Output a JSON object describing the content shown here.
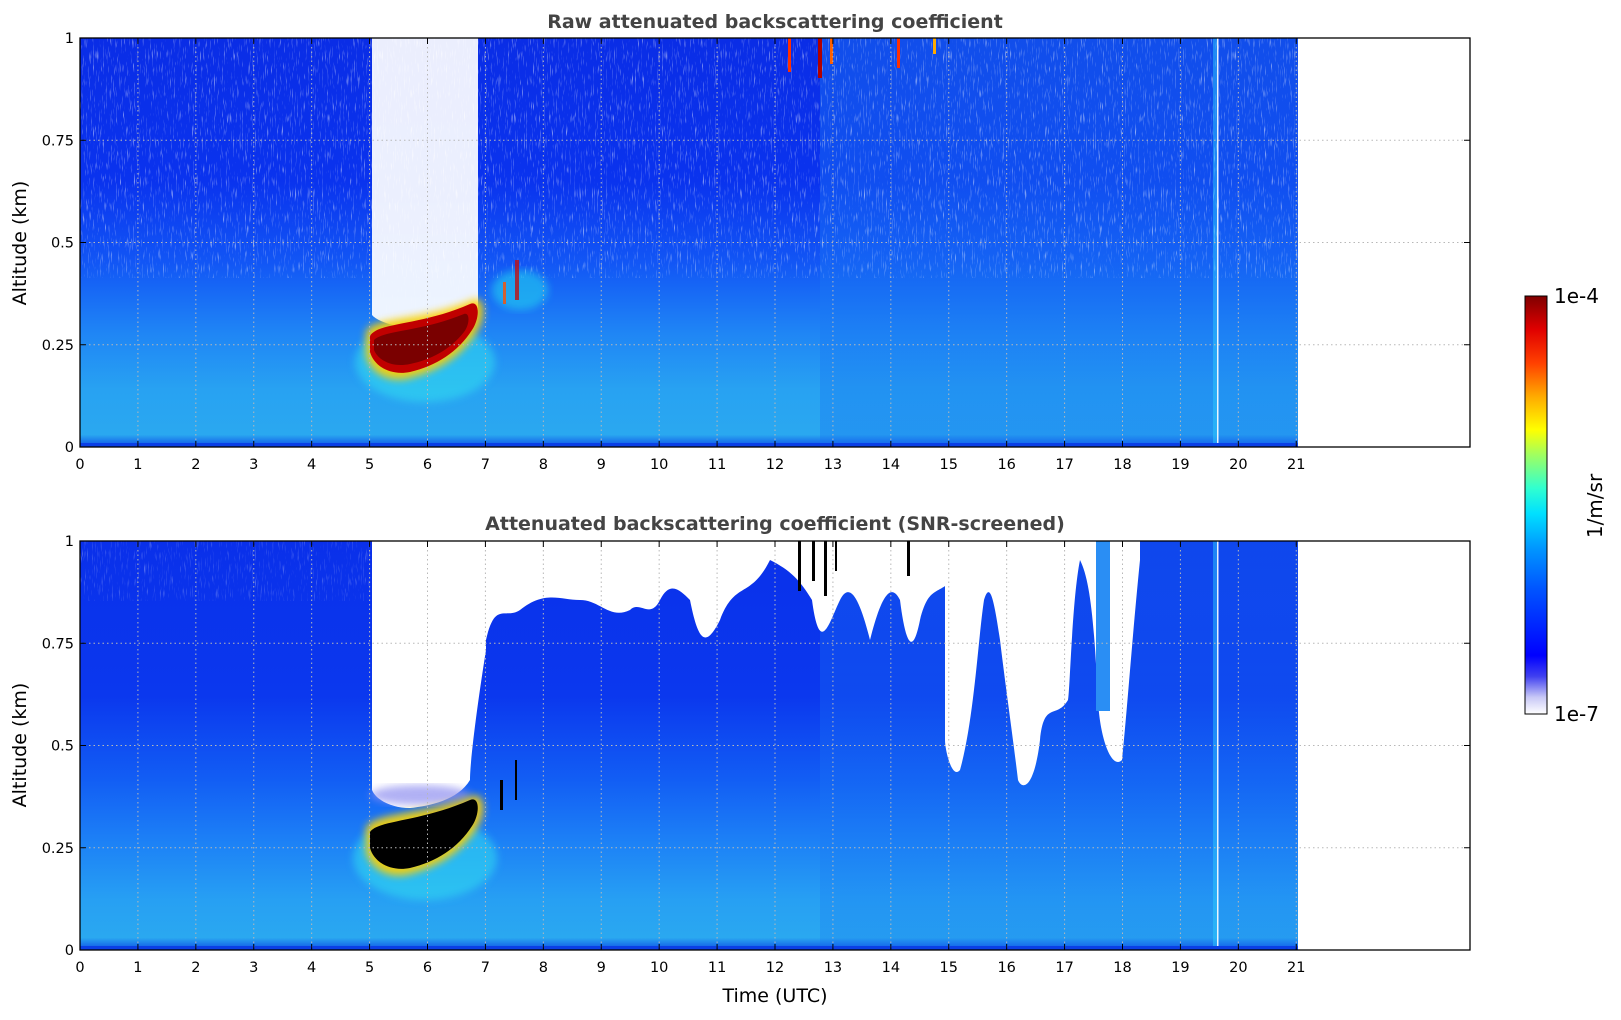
{
  "chart_data": [
    {
      "type": "heatmap",
      "title": "Raw attenuated backscattering coefficient",
      "xlabel": "",
      "ylabel": "Altitude (km)",
      "xlim": [
        0,
        24
      ],
      "ylim": [
        0,
        1
      ],
      "x_ticks": [
        "0",
        "1",
        "2",
        "3",
        "4",
        "5",
        "6",
        "7",
        "8",
        "9",
        "10",
        "11",
        "12",
        "13",
        "14",
        "15",
        "16",
        "17",
        "18",
        "19",
        "20",
        "21"
      ],
      "y_ticks": [
        "0",
        "0.25",
        "0.5",
        "0.75",
        "1"
      ],
      "grid": true,
      "data_extent_hours": [
        0,
        21
      ],
      "features": [
        {
          "name": "cloud base layer",
          "time_range_utc": [
            5.0,
            7.0
          ],
          "altitude_km": [
            0.18,
            0.33
          ],
          "level": "1e-4 (saturated)"
        },
        {
          "name": "rising aerosol plume",
          "time_range_utc": [
            7.0,
            8.2
          ],
          "altitude_km": [
            0.3,
            0.45
          ],
          "level": "high"
        },
        {
          "name": "noise gap above cloud",
          "time_range_utc": [
            5.0,
            6.8
          ],
          "altitude_km": [
            0.35,
            1.0
          ],
          "level": "below 1e-7"
        }
      ]
    },
    {
      "type": "heatmap",
      "title": "Attenuated backscattering coefficient (SNR-screened)",
      "xlabel": "Time (UTC)",
      "ylabel": "Altitude (km)",
      "xlim": [
        0,
        24
      ],
      "ylim": [
        0,
        1
      ],
      "x_ticks": [
        "0",
        "1",
        "2",
        "3",
        "4",
        "5",
        "6",
        "7",
        "8",
        "9",
        "10",
        "11",
        "12",
        "13",
        "14",
        "15",
        "16",
        "17",
        "18",
        "19",
        "20",
        "21"
      ],
      "y_ticks": [
        "0",
        "0.25",
        "0.5",
        "0.75",
        "1"
      ],
      "grid": true,
      "data_extent_hours": [
        0,
        21
      ],
      "features": [
        {
          "name": "cloud base layer",
          "time_range_utc": [
            5.0,
            7.0
          ],
          "altitude_km": [
            0.18,
            0.33
          ],
          "level": "above colour scale (black)"
        },
        {
          "name": "screened out (white)",
          "time_range_utc": [
            5.0,
            7.0
          ],
          "altitude_km": [
            0.35,
            1.0
          ],
          "level": "masked"
        },
        {
          "name": "screened out (white)",
          "time_range_utc": [
            14.8,
            18.4
          ],
          "altitude_km": [
            0.45,
            1.0
          ],
          "level": "masked"
        }
      ]
    }
  ],
  "colorbar": {
    "label": "1/m/sr",
    "max_label": "1e-4",
    "min_label": "1e-7",
    "scale": "log",
    "colormap": "jet"
  }
}
